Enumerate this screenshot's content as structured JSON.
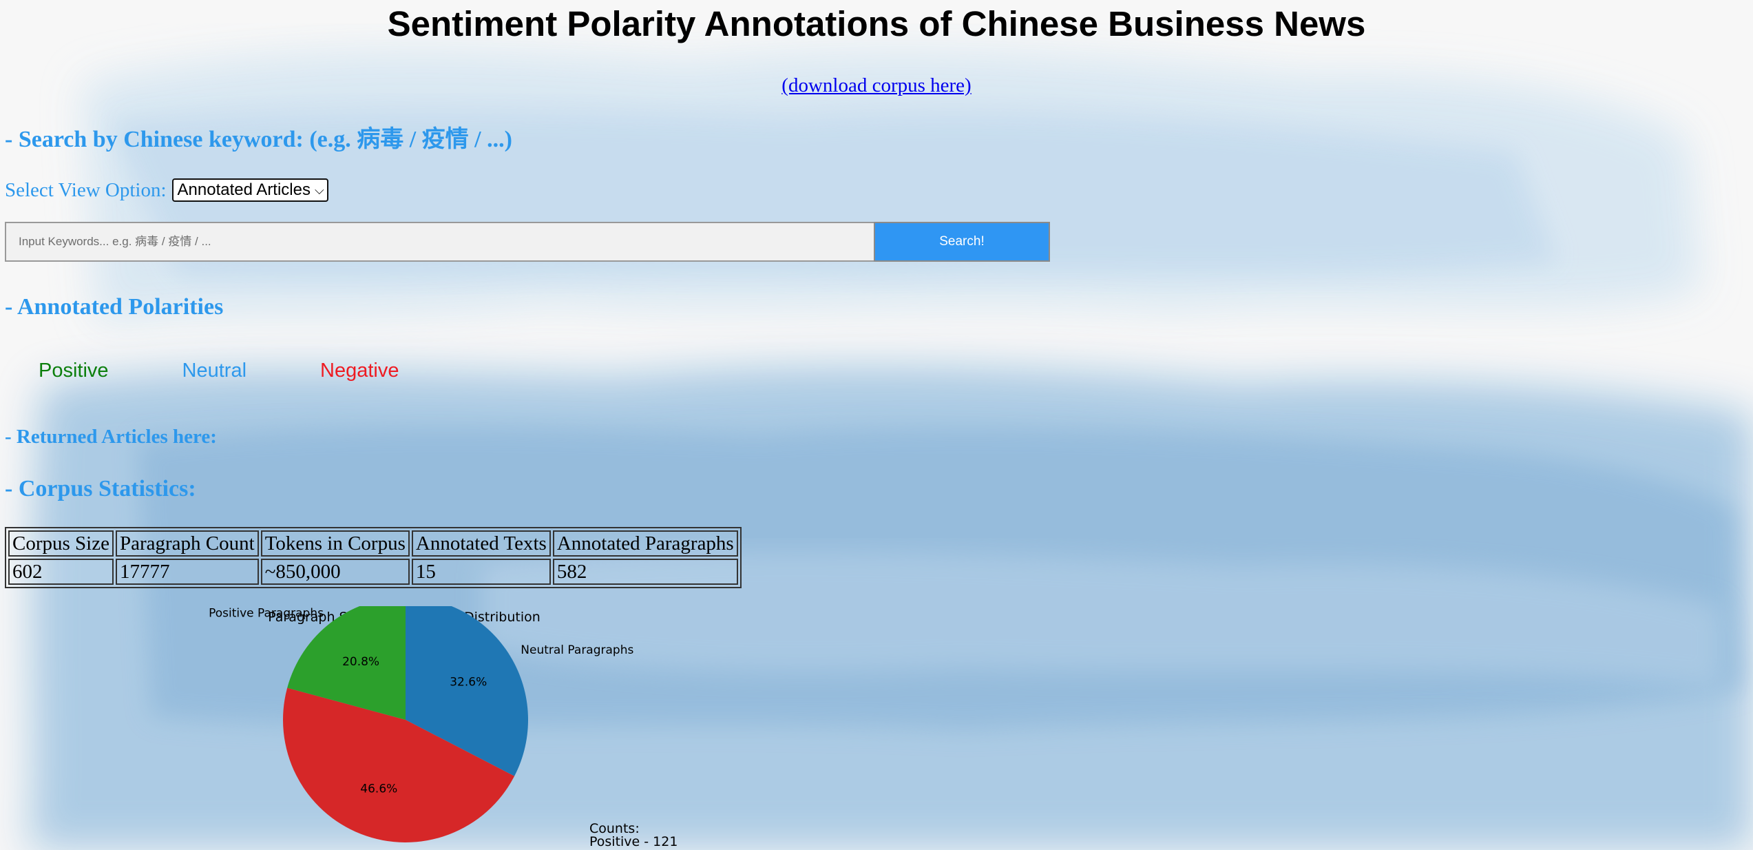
{
  "page": {
    "title": "Sentiment Polarity Annotations of Chinese Business News",
    "download_link": "(download corpus here)"
  },
  "search_section": {
    "heading": "- Search by Chinese keyword: (e.g. 病毒 / 疫情 / ...)",
    "view_label": "Select View Option:",
    "view_selected": "Annotated Articles",
    "input_placeholder": "Input Keywords... e.g. 病毒 / 疫情 / ...",
    "input_value": "",
    "search_button": "Search!"
  },
  "polarities_section": {
    "heading": "- Annotated Polarities",
    "items": [
      {
        "label": "Positive",
        "color": "#0c7f0c"
      },
      {
        "label": "Neutral",
        "color": "#2d98ec"
      },
      {
        "label": "Negative",
        "color": "#ee1b22"
      }
    ]
  },
  "returned_section": {
    "heading": "- Returned Articles here:"
  },
  "stats_section": {
    "heading": "- Corpus Statistics:",
    "columns": [
      "Corpus Size",
      "Paragraph Count",
      "Tokens in Corpus",
      "Annotated Texts",
      "Annotated Paragraphs"
    ],
    "row": [
      "602",
      "17777",
      "~850,000",
      "15",
      "582"
    ]
  },
  "chart_data": {
    "type": "pie",
    "title": "Paragraph Sentiment Polarity Distribution",
    "slices": [
      {
        "label": "Neutral Paragraphs",
        "value": 32.6,
        "pct_label": "32.6%",
        "color": "#1f77b4"
      },
      {
        "label": "",
        "value": 46.6,
        "pct_label": "46.6%",
        "color": "#d62728"
      },
      {
        "label": "Positive Paragraphs",
        "value": 20.8,
        "pct_label": "20.8%",
        "color": "#2ca02c"
      }
    ],
    "counts_text": [
      "Counts:",
      "Positive - 121"
    ]
  }
}
